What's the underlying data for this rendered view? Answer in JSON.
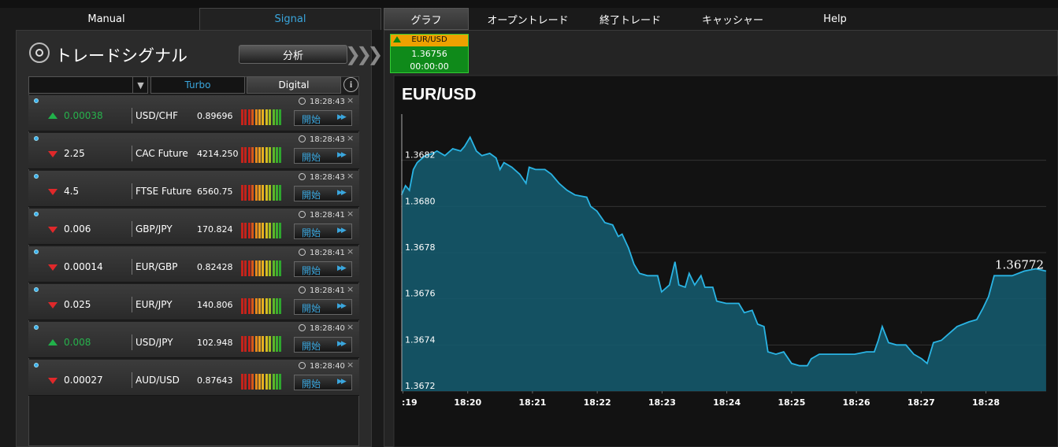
{
  "nav": {
    "tabs": [
      "Manual",
      "Signal",
      "グラフ",
      "オープントレード",
      "終了トレード",
      "キャッシャー",
      "Help"
    ],
    "active": 1
  },
  "panel": {
    "title": "トレードシグナル",
    "button": "分析",
    "tabs": [
      "Turbo",
      "Digital"
    ]
  },
  "signals": [
    {
      "direction": "up",
      "value": "0.00038",
      "asset": "USD/CHF",
      "price": "0.89696",
      "time": "18:28:43",
      "button": "開始"
    },
    {
      "direction": "down",
      "value": "2.25",
      "asset": "CAC Future",
      "price": "4214.250",
      "time": "18:28:43",
      "button": "開始"
    },
    {
      "direction": "down",
      "value": "4.5",
      "asset": "FTSE Future",
      "price": "6560.75",
      "time": "18:28:43",
      "button": "開始"
    },
    {
      "direction": "down",
      "value": "0.006",
      "asset": "GBP/JPY",
      "price": "170.824",
      "time": "18:28:41",
      "button": "開始"
    },
    {
      "direction": "down",
      "value": "0.00014",
      "asset": "EUR/GBP",
      "price": "0.82428",
      "time": "18:28:41",
      "button": "開始"
    },
    {
      "direction": "down",
      "value": "0.025",
      "asset": "EUR/JPY",
      "price": "140.806",
      "time": "18:28:41",
      "button": "開始"
    },
    {
      "direction": "up",
      "value": "0.008",
      "asset": "USD/JPY",
      "price": "102.948",
      "time": "18:28:40",
      "button": "開始"
    },
    {
      "direction": "down",
      "value": "0.00027",
      "asset": "AUD/USD",
      "price": "0.87643",
      "time": "18:28:40",
      "button": "開始"
    }
  ],
  "ticker": {
    "symbol": "EUR/USD",
    "price": "1.36756",
    "timer": "00:00:00"
  },
  "chart_data": {
    "type": "area",
    "title": "EUR/USD",
    "x": [
      1098.978,
      1099.039,
      1099.1,
      1099.161,
      1099.221,
      1099.343,
      1099.465,
      1099.526,
      1099.647,
      1099.769,
      1099.891,
      1099.951,
      1100.036,
      1100.134,
      1100.219,
      1100.341,
      1100.438,
      1100.499,
      1100.56,
      1100.681,
      1100.803,
      1100.9,
      1100.949,
      1101.046,
      1101.192,
      1101.29,
      1101.411,
      1101.533,
      1101.655,
      1101.837,
      1101.898,
      1101.995,
      1102.117,
      1102.238,
      1102.324,
      1102.384,
      1102.482,
      1102.567,
      1102.652,
      1102.774,
      1102.932,
      1102.993,
      1103.114,
      1103.2,
      1103.26,
      1103.358,
      1103.418,
      1103.504,
      1103.601,
      1103.662,
      1103.783,
      1103.844,
      1103.99,
      1104.088,
      1104.185,
      1104.27,
      1104.392,
      1104.477,
      1104.574,
      1104.635,
      1104.757,
      1104.878,
      1105.0,
      1105.122,
      1105.243,
      1105.304,
      1105.426,
      1105.547,
      1105.669,
      1105.852,
      1105.973,
      1106.156,
      1106.277,
      1106.338,
      1106.399,
      1106.496,
      1106.618,
      1106.764,
      1106.886,
      1107.007,
      1107.092,
      1107.19,
      1107.311,
      1107.433,
      1107.555,
      1107.737,
      1107.859,
      1107.956,
      1108.041,
      1108.127,
      1108.224,
      1108.406,
      1108.589,
      1108.771,
      1108.929
    ],
    "values": [
      1.36805,
      1.36809,
      1.36807,
      1.36816,
      1.36819,
      1.36822,
      1.36823,
      1.36824,
      1.36822,
      1.36825,
      1.36824,
      1.36826,
      1.3683,
      1.36824,
      1.36822,
      1.36823,
      1.36821,
      1.36816,
      1.36819,
      1.36817,
      1.36814,
      1.3681,
      1.36817,
      1.36816,
      1.36816,
      1.36814,
      1.3681,
      1.36807,
      1.36805,
      1.36804,
      1.368,
      1.36798,
      1.36793,
      1.36792,
      1.36787,
      1.36788,
      1.36782,
      1.36775,
      1.36771,
      1.3677,
      1.3677,
      1.36763,
      1.36766,
      1.36776,
      1.36766,
      1.36765,
      1.36771,
      1.36766,
      1.3677,
      1.36765,
      1.36765,
      1.36759,
      1.36758,
      1.36758,
      1.36758,
      1.36754,
      1.36755,
      1.36749,
      1.36748,
      1.36737,
      1.36736,
      1.36737,
      1.36732,
      1.36731,
      1.36731,
      1.36734,
      1.36736,
      1.36736,
      1.36736,
      1.36736,
      1.36736,
      1.36737,
      1.36737,
      1.36742,
      1.36748,
      1.36741,
      1.3674,
      1.3674,
      1.36736,
      1.36734,
      1.36732,
      1.36741,
      1.36742,
      1.36745,
      1.36748,
      1.3675,
      1.36751,
      1.36756,
      1.36761,
      1.3677,
      1.3677,
      1.3677,
      1.36772,
      1.36773,
      1.36772
    ],
    "color": "#2ab4e4",
    "area_color": "#15596c",
    "xlim": [
      1098.97,
      1108.93
    ],
    "xticks": [
      {
        "value": 1099,
        "label": ":19"
      },
      {
        "value": 1100,
        "label": "18:20"
      },
      {
        "value": 1101,
        "label": "18:21"
      },
      {
        "value": 1102,
        "label": "18:22"
      },
      {
        "value": 1103,
        "label": "18:23"
      },
      {
        "value": 1104,
        "label": "18:24"
      },
      {
        "value": 1105,
        "label": "18:25"
      },
      {
        "value": 1106,
        "label": "18:26"
      },
      {
        "value": 1107,
        "label": "18:27"
      },
      {
        "value": 1108,
        "label": "18:28"
      }
    ],
    "ylim": [
      1.3672,
      1.3684
    ],
    "yticks": [
      1.3672,
      1.3674,
      1.3676,
      1.3678,
      {
        "value": 1.368,
        "label": "1.3680"
      },
      1.3682
    ],
    "grid": true
  }
}
